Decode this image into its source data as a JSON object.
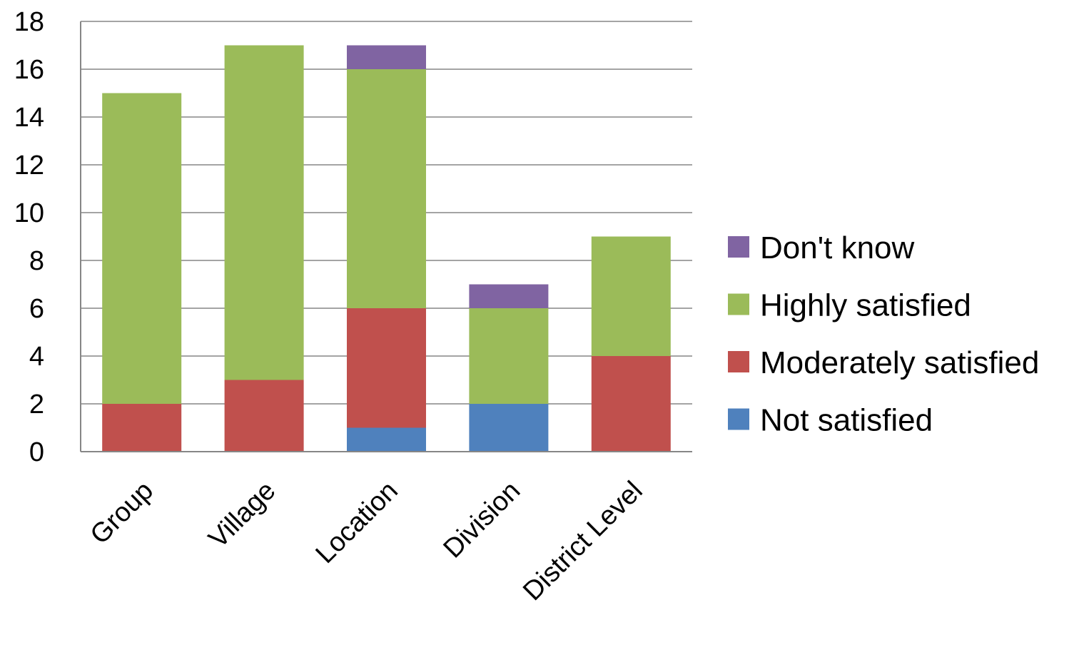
{
  "chart_data": {
    "type": "bar",
    "stacked": true,
    "categories": [
      "Group",
      "Village",
      "Location",
      "Division",
      "District Level"
    ],
    "series": [
      {
        "name": "Not satisfied",
        "color": "#4F81BD",
        "values": [
          0,
          0,
          1,
          2,
          0
        ]
      },
      {
        "name": "Moderately satisfied",
        "color": "#C0504D",
        "values": [
          2,
          3,
          5,
          0,
          4
        ]
      },
      {
        "name": "Highly satisfied",
        "color": "#9BBB59",
        "values": [
          13,
          14,
          10,
          4,
          5
        ]
      },
      {
        "name": "Don't know",
        "color": "#8064A2",
        "values": [
          0,
          0,
          1,
          1,
          0
        ]
      }
    ],
    "ylim": [
      0,
      18
    ],
    "yticks": [
      0,
      2,
      4,
      6,
      8,
      10,
      12,
      14,
      16,
      18
    ],
    "grid": true,
    "legend_position": "right",
    "legend_order": [
      "Don't know",
      "Highly satisfied",
      "Moderately satisfied",
      "Not satisfied"
    ],
    "xtick_rotation": -45
  }
}
